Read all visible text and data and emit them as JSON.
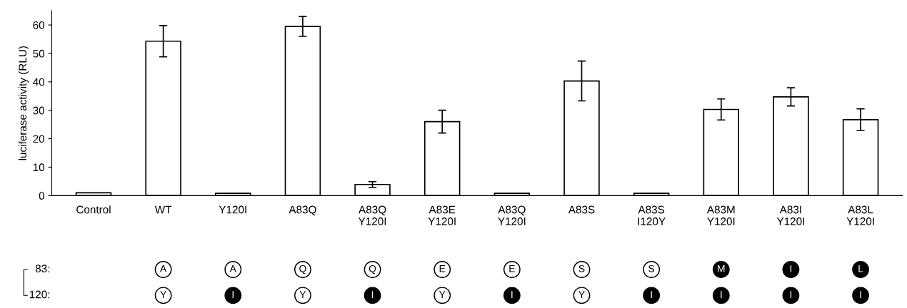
{
  "chart_data": {
    "type": "bar",
    "ylabel": "luciferase activity (RLU)",
    "categories": [
      "Control",
      "WT",
      "Y120I",
      "A83Q",
      "A83Q\nY120I",
      "A83E\nY120I",
      "A83Q\nY120I",
      "A83S",
      "A83S\nI120Y",
      "A83M\nY120I",
      "A83I\nY120I",
      "A83L\nY120I"
    ],
    "values": [
      1,
      54.3,
      0.8,
      59.5,
      3.9,
      26,
      0.8,
      40.3,
      0.8,
      30.3,
      34.7,
      26.7
    ],
    "errors": [
      null,
      5.5,
      null,
      3.5,
      1,
      4,
      null,
      7,
      null,
      3.7,
      3.2,
      3.8
    ],
    "color": "#ffffff",
    "ylim": [
      0,
      65
    ],
    "yticks": [
      0,
      10,
      20,
      30,
      40,
      50,
      60
    ],
    "grid": false,
    "annotations": [
      "83:",
      "A",
      "A",
      "Q",
      "Q",
      "E",
      "E",
      "S",
      "S",
      "M",
      "I",
      "L",
      "120:",
      "Y",
      "I",
      "Y",
      "I",
      "Y",
      "I",
      "Y",
      "I",
      "I",
      "I",
      "I"
    ]
  }
}
